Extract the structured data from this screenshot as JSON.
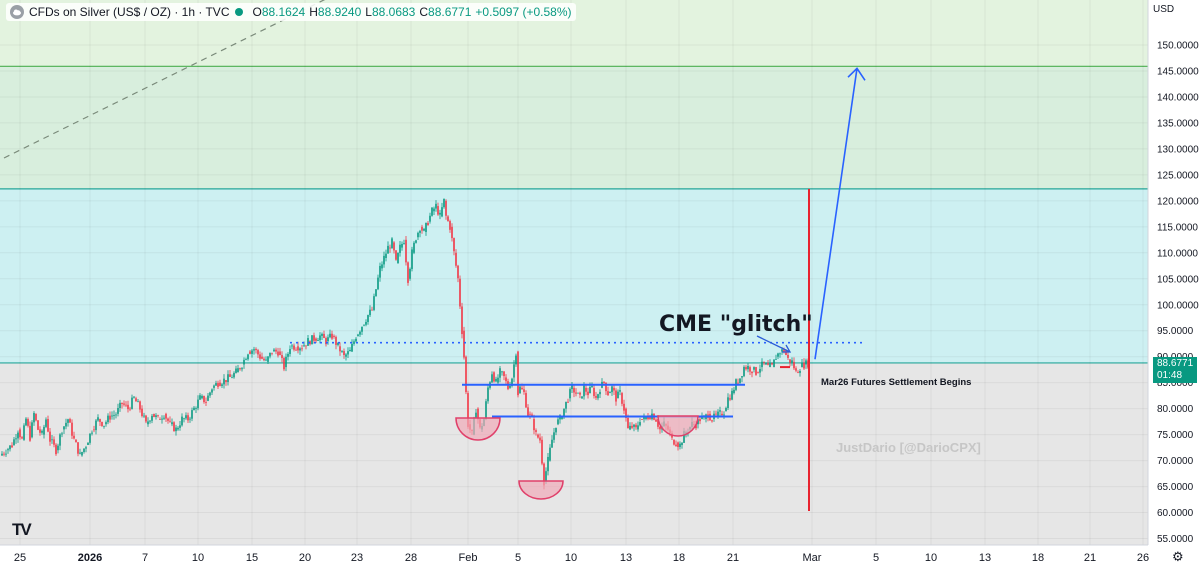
{
  "header": {
    "symbol": "CFDs on Silver (US$ / OZ) · 1h · TVC",
    "open_label": "O",
    "open": "88.1624",
    "high_label": "H",
    "high": "88.9240",
    "low_label": "L",
    "low": "88.0683",
    "close_label": "C",
    "close": "88.6771",
    "change": "+0.5097 (+0.58%)"
  },
  "currency": "USD",
  "last_price": {
    "value": "88.6771",
    "countdown": "01:48"
  },
  "annotations": {
    "glitch": "CME \"glitch\"",
    "settlement": "Mar26 Futures Settlement Begins",
    "watermark": "JustDario [@DarioCPX]"
  },
  "logo": "TV",
  "settings_icon": "gear-icon",
  "colors": {
    "up": "#089981",
    "down": "#f23645",
    "upper_zone": "#e3f3df",
    "mid_zone": "#cdf0f2",
    "lower_zone": "#e6e6e6",
    "level_line": "#2962ff",
    "arrow": "#2962ff",
    "vline": "#e8232f",
    "cup": "#f0a9b8",
    "cup_edge": "#e0406a",
    "band_line": "#4caf50",
    "cyan_line": "#26a69a"
  },
  "chart_data": {
    "type": "candlestick",
    "xticks": [
      "25",
      "2026",
      "7",
      "10",
      "15",
      "20",
      "23",
      "28",
      "Feb",
      "5",
      "10",
      "13",
      "18",
      "21",
      "Mar",
      "5",
      "10",
      "13",
      "18",
      "21",
      "26"
    ],
    "yticks": [
      "150.0000",
      "145.0000",
      "140.0000",
      "135.0000",
      "130.0000",
      "125.0000",
      "120.0000",
      "115.0000",
      "110.0000",
      "105.0000",
      "100.0000",
      "95.0000",
      "90.0000",
      "85.0000",
      "80.0000",
      "75.0000",
      "70.0000",
      "65.0000",
      "60.0000",
      "55.0000"
    ],
    "ylim": [
      54.5,
      155.5
    ],
    "path": [
      [
        0,
        71
      ],
      [
        6,
        72
      ],
      [
        12,
        73
      ],
      [
        18,
        76
      ],
      [
        22,
        74
      ],
      [
        26,
        78
      ],
      [
        30,
        74.5
      ],
      [
        34,
        79
      ],
      [
        38,
        76
      ],
      [
        42,
        75
      ],
      [
        46,
        78
      ],
      [
        50,
        74
      ],
      [
        56,
        72
      ],
      [
        62,
        76
      ],
      [
        68,
        78
      ],
      [
        74,
        74
      ],
      [
        80,
        71
      ],
      [
        86,
        73
      ],
      [
        92,
        76
      ],
      [
        98,
        78
      ],
      [
        104,
        77
      ],
      [
        110,
        78.5
      ],
      [
        116,
        79
      ],
      [
        122,
        81
      ],
      [
        128,
        80
      ],
      [
        134,
        82
      ],
      [
        140,
        80
      ],
      [
        146,
        77
      ],
      [
        152,
        79
      ],
      [
        158,
        78
      ],
      [
        164,
        79
      ],
      [
        170,
        77
      ],
      [
        176,
        76
      ],
      [
        182,
        78
      ],
      [
        188,
        78
      ],
      [
        194,
        80
      ],
      [
        200,
        82
      ],
      [
        206,
        81.5
      ],
      [
        212,
        84
      ],
      [
        218,
        85
      ],
      [
        224,
        85.5
      ],
      [
        230,
        86
      ],
      [
        236,
        87
      ],
      [
        242,
        88.5
      ],
      [
        248,
        91
      ],
      [
        254,
        91.5
      ],
      [
        260,
        90
      ],
      [
        266,
        89
      ],
      [
        272,
        91
      ],
      [
        278,
        91
      ],
      [
        284,
        88
      ],
      [
        290,
        92
      ],
      [
        296,
        92
      ],
      [
        302,
        92
      ],
      [
        308,
        93
      ],
      [
        314,
        93.5
      ],
      [
        320,
        94
      ],
      [
        326,
        93
      ],
      [
        332,
        94
      ],
      [
        338,
        92
      ],
      [
        344,
        90
      ],
      [
        350,
        91
      ],
      [
        356,
        94
      ],
      [
        362,
        96
      ],
      [
        368,
        98
      ],
      [
        372,
        99
      ],
      [
        376,
        103
      ],
      [
        380,
        107
      ],
      [
        384,
        109
      ],
      [
        388,
        111
      ],
      [
        392,
        112
      ],
      [
        396,
        108
      ],
      [
        400,
        111
      ],
      [
        404,
        112.5
      ],
      [
        408,
        105
      ],
      [
        412,
        110
      ],
      [
        416,
        113
      ],
      [
        420,
        115
      ],
      [
        424,
        114
      ],
      [
        428,
        116
      ],
      [
        432,
        118
      ],
      [
        436,
        119
      ],
      [
        440,
        117
      ],
      [
        444,
        120
      ],
      [
        446,
        117
      ],
      [
        450,
        115
      ],
      [
        454,
        110
      ],
      [
        458,
        105
      ],
      [
        462,
        95
      ],
      [
        464,
        90
      ],
      [
        466,
        83
      ],
      [
        468,
        77
      ],
      [
        472,
        75
      ],
      [
        476,
        80
      ],
      [
        480,
        76
      ],
      [
        484,
        78
      ],
      [
        488,
        84
      ],
      [
        492,
        87
      ],
      [
        496,
        85
      ],
      [
        500,
        87
      ],
      [
        504,
        86
      ],
      [
        508,
        84
      ],
      [
        512,
        86
      ],
      [
        516,
        91
      ],
      [
        518,
        83
      ],
      [
        520,
        84
      ],
      [
        524,
        83
      ],
      [
        528,
        79
      ],
      [
        532,
        78
      ],
      [
        536,
        75
      ],
      [
        540,
        74
      ],
      [
        544,
        66
      ],
      [
        548,
        70
      ],
      [
        552,
        74
      ],
      [
        556,
        77
      ],
      [
        560,
        78
      ],
      [
        564,
        80
      ],
      [
        568,
        82
      ],
      [
        572,
        84
      ],
      [
        576,
        83
      ],
      [
        580,
        82
      ],
      [
        584,
        84
      ],
      [
        588,
        83
      ],
      [
        592,
        84
      ],
      [
        596,
        82
      ],
      [
        600,
        84
      ],
      [
        604,
        85
      ],
      [
        608,
        83
      ],
      [
        612,
        84
      ],
      [
        616,
        82
      ],
      [
        620,
        83
      ],
      [
        624,
        80
      ],
      [
        628,
        76
      ],
      [
        632,
        76.5
      ],
      [
        636,
        76
      ],
      [
        640,
        78
      ],
      [
        644,
        78
      ],
      [
        648,
        78.5
      ],
      [
        652,
        79
      ],
      [
        656,
        78
      ],
      [
        660,
        76
      ],
      [
        664,
        77
      ],
      [
        668,
        76
      ],
      [
        672,
        74
      ],
      [
        676,
        73.5
      ],
      [
        680,
        73
      ],
      [
        684,
        75
      ],
      [
        688,
        76
      ],
      [
        692,
        77
      ],
      [
        696,
        77
      ],
      [
        700,
        78
      ],
      [
        704,
        78
      ],
      [
        708,
        79
      ],
      [
        712,
        78
      ],
      [
        716,
        78.5
      ],
      [
        720,
        79
      ],
      [
        724,
        79.5
      ],
      [
        728,
        82
      ],
      [
        732,
        83
      ],
      [
        736,
        85
      ],
      [
        740,
        86
      ],
      [
        744,
        88
      ],
      [
        748,
        88
      ],
      [
        752,
        87.5
      ],
      [
        756,
        87
      ],
      [
        760,
        88
      ],
      [
        764,
        88.5
      ],
      [
        768,
        88
      ],
      [
        772,
        88
      ],
      [
        776,
        90
      ],
      [
        780,
        91
      ],
      [
        784,
        91.2
      ],
      [
        788,
        89.5
      ],
      [
        792,
        89
      ],
      [
        796,
        87
      ],
      [
        800,
        88
      ],
      [
        804,
        88.5
      ],
      [
        808,
        88.7
      ]
    ]
  }
}
